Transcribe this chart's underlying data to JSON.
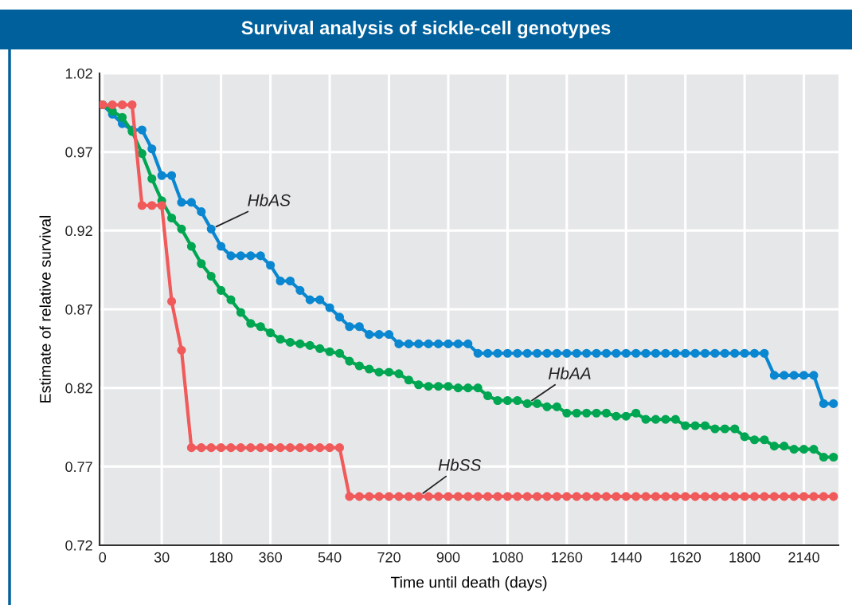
{
  "chart_data": {
    "type": "line",
    "title": "Survival analysis of sickle-cell genotypes",
    "xlabel": "Time until death (days)",
    "ylabel": "Estimate of relative survival",
    "categories": [
      "0",
      null,
      null,
      null,
      null,
      null,
      "30",
      null,
      null,
      null,
      null,
      null,
      "180",
      null,
      null,
      null,
      null,
      "360",
      null,
      null,
      null,
      null,
      null,
      "540",
      null,
      null,
      null,
      null,
      null,
      "720",
      null,
      null,
      null,
      null,
      null,
      "900",
      null,
      null,
      null,
      null,
      null,
      "1080",
      null,
      null,
      null,
      null,
      null,
      "1260",
      null,
      null,
      null,
      null,
      null,
      "1440",
      null,
      null,
      null,
      null,
      null,
      "1620",
      null,
      null,
      null,
      null,
      null,
      "1800",
      null,
      null,
      null,
      null,
      null,
      "2140",
      null,
      null,
      null
    ],
    "ylim": [
      0.72,
      1.02
    ],
    "yticks": [
      0.72,
      0.77,
      0.82,
      0.87,
      0.92,
      0.97,
      1.02
    ],
    "grid": true,
    "legend": false,
    "marker": "circle",
    "line_style": "solid",
    "series": [
      {
        "name": "HbAS",
        "color": "#0a87d0",
        "values": [
          1.0,
          0.994,
          0.988,
          0.984,
          0.984,
          0.972,
          0.955,
          0.955,
          0.938,
          0.938,
          0.932,
          0.921,
          0.91,
          0.904,
          0.904,
          0.904,
          0.904,
          0.898,
          0.888,
          0.888,
          0.882,
          0.876,
          0.876,
          0.871,
          0.865,
          0.859,
          0.859,
          0.854,
          0.854,
          0.854,
          0.848,
          0.848,
          0.848,
          0.848,
          0.848,
          0.848,
          0.848,
          0.848,
          0.842,
          0.842,
          0.842,
          0.842,
          0.842,
          0.842,
          0.842,
          0.842,
          0.842,
          0.842,
          0.842,
          0.842,
          0.842,
          0.842,
          0.842,
          0.842,
          0.842,
          0.842,
          0.842,
          0.842,
          0.842,
          0.842,
          0.842,
          0.842,
          0.842,
          0.842,
          0.842,
          0.842,
          0.842,
          0.842,
          0.828,
          0.828,
          0.828,
          0.828,
          0.828,
          0.81,
          0.81
        ]
      },
      {
        "name": "HbAA",
        "color": "#00a651",
        "values": [
          1.0,
          0.996,
          0.992,
          0.983,
          0.969,
          0.953,
          0.939,
          0.928,
          0.921,
          0.91,
          0.899,
          0.891,
          0.882,
          0.876,
          0.868,
          0.861,
          0.859,
          0.855,
          0.851,
          0.849,
          0.848,
          0.847,
          0.845,
          0.843,
          0.842,
          0.837,
          0.834,
          0.832,
          0.83,
          0.83,
          0.829,
          0.825,
          0.822,
          0.821,
          0.821,
          0.821,
          0.82,
          0.82,
          0.82,
          0.815,
          0.812,
          0.812,
          0.812,
          0.81,
          0.81,
          0.808,
          0.808,
          0.804,
          0.804,
          0.804,
          0.804,
          0.804,
          0.802,
          0.802,
          0.804,
          0.8,
          0.8,
          0.8,
          0.8,
          0.796,
          0.796,
          0.796,
          0.794,
          0.794,
          0.794,
          0.789,
          0.787,
          0.787,
          0.783,
          0.783,
          0.781,
          0.781,
          0.781,
          0.776,
          0.776
        ]
      },
      {
        "name": "HbSS",
        "color": "#f05a5a",
        "values": [
          1.0,
          1.0,
          1.0,
          1.0,
          0.936,
          0.936,
          0.936,
          0.875,
          0.844,
          0.782,
          0.782,
          0.782,
          0.782,
          0.782,
          0.782,
          0.782,
          0.782,
          0.782,
          0.782,
          0.782,
          0.782,
          0.782,
          0.782,
          0.782,
          0.782,
          0.751,
          0.751,
          0.751,
          0.751,
          0.751,
          0.751,
          0.751,
          0.751,
          0.751,
          0.751,
          0.751,
          0.751,
          0.751,
          0.751,
          0.751,
          0.751,
          0.751,
          0.751,
          0.751,
          0.751,
          0.751,
          0.751,
          0.751,
          0.751,
          0.751,
          0.751,
          0.751,
          0.751,
          0.751,
          0.751,
          0.751,
          0.751,
          0.751,
          0.751,
          0.751,
          0.751,
          0.751,
          0.751,
          0.751,
          0.751,
          0.751,
          0.751,
          0.751,
          0.751,
          0.751,
          0.751,
          0.751,
          0.751,
          0.751,
          0.751
        ]
      }
    ]
  }
}
